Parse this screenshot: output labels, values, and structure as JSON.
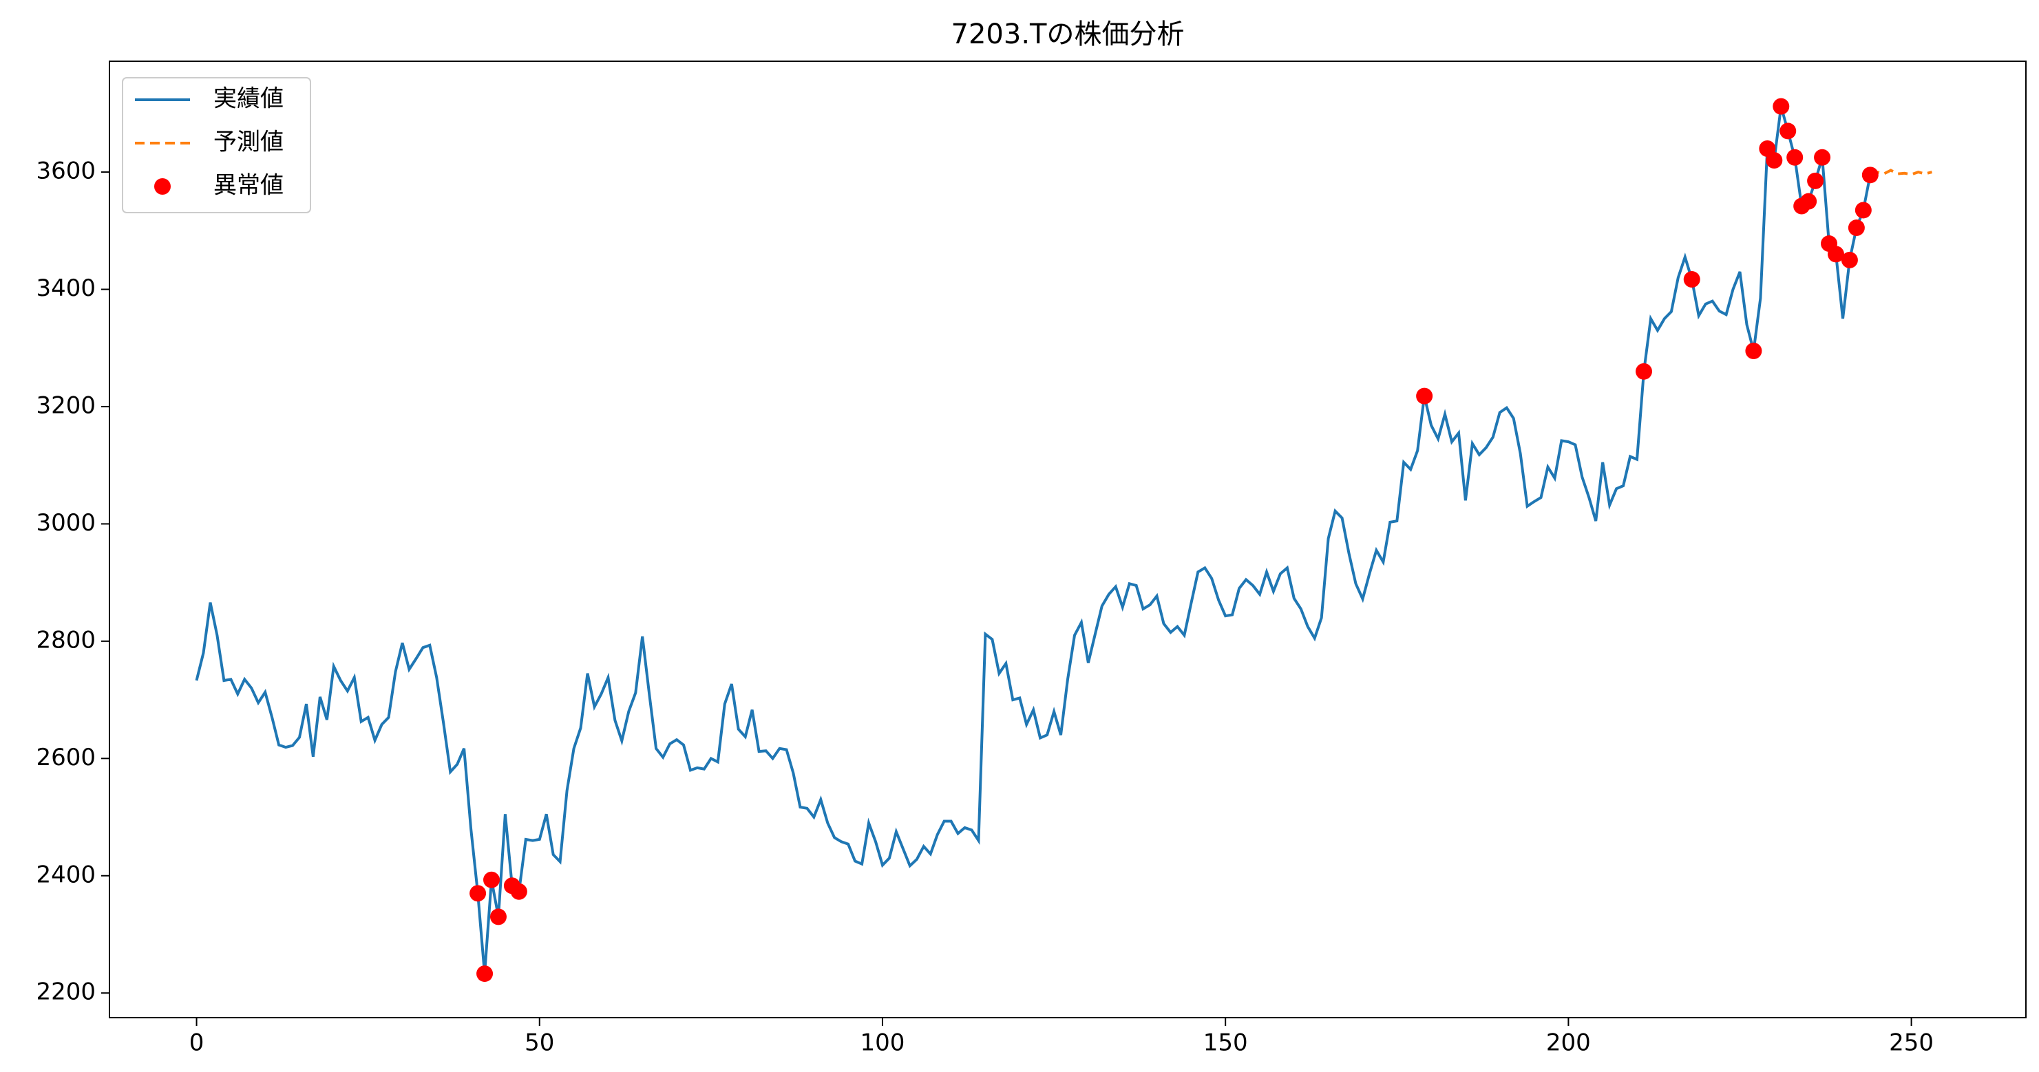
{
  "chart_data": {
    "type": "line",
    "title": "7203.Tの株価分析",
    "xlim": [
      -12.7,
      266.7
    ],
    "xticks": [
      0,
      50,
      100,
      150,
      200,
      250
    ],
    "ylim": [
      2158,
      3789
    ],
    "yticks": [
      2200,
      2400,
      2600,
      2800,
      3000,
      3200,
      3400,
      3600
    ],
    "legend": "upper left",
    "series": [
      {
        "name": "実績値",
        "color": "#1f77b4",
        "style": "solid",
        "x": [
          0,
          1,
          2,
          3,
          4,
          5,
          6,
          7,
          8,
          9,
          10,
          11,
          12,
          13,
          14,
          15,
          16,
          17,
          18,
          19,
          20,
          21,
          22,
          23,
          24,
          25,
          26,
          27,
          28,
          29,
          30,
          31,
          32,
          33,
          34,
          35,
          36,
          37,
          38,
          39,
          40,
          41,
          42,
          43,
          44,
          45,
          46,
          47,
          48,
          49,
          50,
          51,
          52,
          53,
          54,
          55,
          56,
          57,
          58,
          59,
          60,
          61,
          62,
          63,
          64,
          65,
          66,
          67,
          68,
          69,
          70,
          71,
          72,
          73,
          74,
          75,
          76,
          77,
          78,
          79,
          80,
          81,
          82,
          83,
          84,
          85,
          86,
          87,
          88,
          89,
          90,
          91,
          92,
          93,
          94,
          95,
          96,
          97,
          98,
          99,
          100,
          101,
          102,
          103,
          104,
          105,
          106,
          107,
          108,
          109,
          110,
          111,
          112,
          113,
          114,
          115,
          116,
          117,
          118,
          119,
          120,
          121,
          122,
          123,
          124,
          125,
          126,
          127,
          128,
          129,
          130,
          131,
          132,
          133,
          134,
          135,
          136,
          137,
          138,
          139,
          140,
          141,
          142,
          143,
          144,
          145,
          146,
          147,
          148,
          149,
          150,
          151,
          152,
          153,
          154,
          155,
          156,
          157,
          158,
          159,
          160,
          161,
          162,
          163,
          164,
          165,
          166,
          167,
          168,
          169,
          170,
          171,
          172,
          173,
          174,
          175,
          176,
          177,
          178,
          179,
          180,
          181,
          182,
          183,
          184,
          185,
          186,
          187,
          188,
          189,
          190,
          191,
          192,
          193,
          194,
          195,
          196,
          197,
          198,
          199,
          200,
          201,
          202,
          203,
          204,
          205,
          206,
          207,
          208,
          209,
          210,
          211,
          212,
          213,
          214,
          215,
          216,
          217,
          218,
          219,
          220,
          221,
          222,
          223,
          224,
          225,
          226,
          227,
          228,
          229,
          230,
          231,
          232,
          233,
          234,
          235,
          236,
          237,
          238,
          239,
          240,
          241,
          242,
          243,
          244
        ],
        "values": [
          2733,
          2780,
          2866,
          2810,
          2733,
          2735,
          2710,
          2735,
          2720,
          2695,
          2713,
          2670,
          2623,
          2619,
          2622,
          2636,
          2693,
          2603,
          2705,
          2666,
          2757,
          2733,
          2715,
          2738,
          2663,
          2670,
          2631,
          2658,
          2670,
          2748,
          2797,
          2752,
          2770,
          2789,
          2793,
          2738,
          2660,
          2577,
          2590,
          2617,
          2480,
          2370,
          2233,
          2393,
          2330,
          2505,
          2383,
          2373,
          2462,
          2460,
          2462,
          2505,
          2436,
          2424,
          2545,
          2617,
          2652,
          2745,
          2688,
          2710,
          2738,
          2665,
          2630,
          2680,
          2712,
          2808,
          2710,
          2617,
          2602,
          2625,
          2632,
          2623,
          2580,
          2584,
          2582,
          2600,
          2594,
          2693,
          2727,
          2650,
          2637,
          2683,
          2612,
          2613,
          2600,
          2617,
          2615,
          2575,
          2517,
          2515,
          2500,
          2530,
          2490,
          2465,
          2458,
          2454,
          2425,
          2420,
          2490,
          2458,
          2418,
          2430,
          2475,
          2446,
          2417,
          2428,
          2450,
          2437,
          2470,
          2493,
          2493,
          2472,
          2482,
          2478,
          2460,
          2812,
          2803,
          2745,
          2762,
          2700,
          2703,
          2658,
          2683,
          2635,
          2640,
          2680,
          2640,
          2735,
          2810,
          2832,
          2763,
          2812,
          2860,
          2880,
          2893,
          2858,
          2898,
          2895,
          2855,
          2862,
          2877,
          2830,
          2815,
          2825,
          2810,
          2865,
          2918,
          2925,
          2907,
          2870,
          2843,
          2845,
          2890,
          2905,
          2895,
          2880,
          2918,
          2885,
          2915,
          2925,
          2873,
          2855,
          2825,
          2805,
          2840,
          2975,
          3022,
          3010,
          2950,
          2898,
          2872,
          2915,
          2955,
          2935,
          3003,
          3005,
          3105,
          3093,
          3125,
          3218,
          3168,
          3145,
          3187,
          3140,
          3155,
          3040,
          3137,
          3118,
          3130,
          3148,
          3190,
          3198,
          3180,
          3120,
          3030,
          3038,
          3045,
          3097,
          3078,
          3142,
          3140,
          3135,
          3080,
          3045,
          3005,
          3105,
          3032,
          3060,
          3065,
          3115,
          3110,
          3260,
          3350,
          3330,
          3350,
          3362,
          3420,
          3455,
          3417,
          3355,
          3375,
          3380,
          3363,
          3357,
          3400,
          3430,
          3340,
          3295,
          3385,
          3640,
          3620,
          3712,
          3670,
          3625,
          3542,
          3550,
          3585,
          3625,
          3478,
          3460,
          3350,
          3450,
          3505,
          3535,
          3595
        ]
      },
      {
        "name": "予測値",
        "color": "#ff7f0e",
        "style": "dashed",
        "x": [
          244,
          245,
          246,
          247,
          248,
          249,
          250,
          251,
          252,
          253
        ],
        "values": [
          3595,
          3600,
          3597,
          3603,
          3597,
          3598,
          3596,
          3600,
          3597,
          3600
        ]
      },
      {
        "name": "異常値",
        "color": "#ff0000",
        "style": "scatter",
        "x": [
          41,
          42,
          43,
          44,
          46,
          47,
          179,
          211,
          218,
          227,
          229,
          230,
          231,
          232,
          233,
          234,
          235,
          236,
          237,
          238,
          239,
          241,
          242,
          243,
          244
        ],
        "values": [
          2370,
          2233,
          2393,
          2330,
          2383,
          2373,
          3218,
          3260,
          3417,
          3295,
          3640,
          3620,
          3712,
          3670,
          3625,
          3542,
          3550,
          3585,
          3625,
          3478,
          3460,
          3450,
          3505,
          3535,
          3595
        ]
      }
    ]
  }
}
